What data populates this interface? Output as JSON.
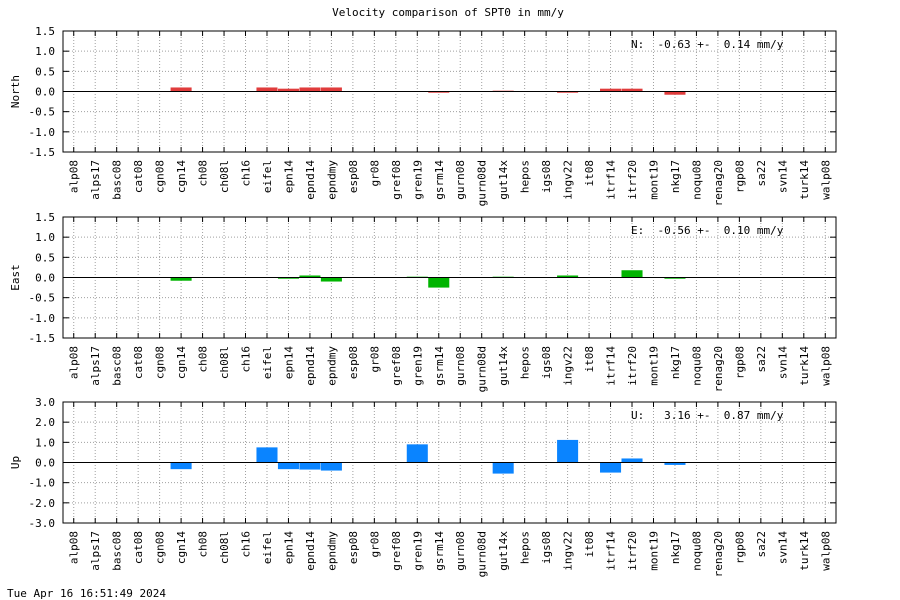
{
  "title": "Velocity comparison of SPT0 in mm/y",
  "timestamp": "Tue Apr 16 16:51:49 2024",
  "chart_data": [
    {
      "type": "bar",
      "title": "",
      "ylabel": "North",
      "ylim": [
        -1.5,
        1.5
      ],
      "yticks": [
        "1.5",
        "1.0",
        "0.5",
        "0.0",
        "-0.5",
        "-1.0",
        "-1.5"
      ],
      "grid": true,
      "color": "#e03c3c",
      "annotation": "N:  -0.63 +-  0.14 mm/y",
      "categories": [
        "alp08",
        "alps17",
        "basc08",
        "cat08",
        "cgn08",
        "cgn14",
        "ch08",
        "ch08l",
        "ch16",
        "eifel",
        "epn14",
        "epnd14",
        "epndmy",
        "esp08",
        "gr08",
        "gref08",
        "gren19",
        "gsrm14",
        "gurn08",
        "gurn08d",
        "gut14x",
        "hepos",
        "igs08",
        "ingv22",
        "it08",
        "itrf14",
        "itrf20",
        "mont19",
        "nkg17",
        "noqu08",
        "renag20",
        "rgp08",
        "sa22",
        "svn14",
        "turk14",
        "walp08"
      ],
      "values": [
        0,
        0,
        0,
        0,
        0,
        0.1,
        0,
        0,
        0,
        0.1,
        0.07,
        0.1,
        0.1,
        0,
        0,
        0,
        0,
        -0.03,
        0,
        0,
        0.02,
        0,
        0,
        -0.03,
        0,
        0.07,
        0.07,
        0,
        -0.08,
        0,
        0,
        0,
        0,
        0,
        0,
        0
      ]
    },
    {
      "type": "bar",
      "title": "",
      "ylabel": "East",
      "ylim": [
        -1.5,
        1.5
      ],
      "yticks": [
        "1.5",
        "1.0",
        "0.5",
        "0.0",
        "-0.5",
        "-1.0",
        "-1.5"
      ],
      "grid": true,
      "color": "#00b400",
      "annotation": "E:  -0.56 +-  0.10 mm/y",
      "categories": [
        "alp08",
        "alps17",
        "basc08",
        "cat08",
        "cgn08",
        "cgn14",
        "ch08",
        "ch08l",
        "ch16",
        "eifel",
        "epn14",
        "epnd14",
        "epndmy",
        "esp08",
        "gr08",
        "gref08",
        "gren19",
        "gsrm14",
        "gurn08",
        "gurn08d",
        "gut14x",
        "hepos",
        "igs08",
        "ingv22",
        "it08",
        "itrf14",
        "itrf20",
        "mont19",
        "nkg17",
        "noqu08",
        "renag20",
        "rgp08",
        "sa22",
        "svn14",
        "turk14",
        "walp08"
      ],
      "values": [
        0,
        0,
        0,
        0,
        0,
        -0.08,
        0,
        0,
        0,
        0,
        -0.03,
        0.05,
        -0.1,
        0,
        0,
        0,
        0.02,
        -0.25,
        0,
        0,
        0.02,
        0,
        0,
        0.05,
        0,
        0,
        0.18,
        0,
        -0.03,
        0,
        0,
        0,
        0,
        0,
        0,
        0
      ]
    },
    {
      "type": "bar",
      "title": "",
      "ylabel": "Up",
      "ylim": [
        -3.0,
        3.0
      ],
      "yticks": [
        "3.0",
        "2.0",
        "1.0",
        "0.0",
        "-1.0",
        "-2.0",
        "-3.0"
      ],
      "grid": true,
      "color": "#0a84ff",
      "annotation": "U:   3.16 +-  0.87 mm/y",
      "categories": [
        "alp08",
        "alps17",
        "basc08",
        "cat08",
        "cgn08",
        "cgn14",
        "ch08",
        "ch08l",
        "ch16",
        "eifel",
        "epn14",
        "epnd14",
        "epndmy",
        "esp08",
        "gr08",
        "gref08",
        "gren19",
        "gsrm14",
        "gurn08",
        "gurn08d",
        "gut14x",
        "hepos",
        "igs08",
        "ingv22",
        "it08",
        "itrf14",
        "itrf20",
        "mont19",
        "nkg17",
        "noqu08",
        "renag20",
        "rgp08",
        "sa22",
        "svn14",
        "turk14",
        "walp08"
      ],
      "values": [
        0,
        0,
        0,
        0,
        0,
        -0.33,
        0,
        0,
        0,
        0.75,
        -0.33,
        -0.35,
        -0.4,
        0,
        0,
        0,
        0.9,
        0,
        0,
        0,
        -0.55,
        0,
        0,
        1.12,
        0,
        -0.5,
        0.2,
        0,
        -0.12,
        0,
        0,
        0,
        0,
        0,
        0,
        0
      ]
    }
  ]
}
